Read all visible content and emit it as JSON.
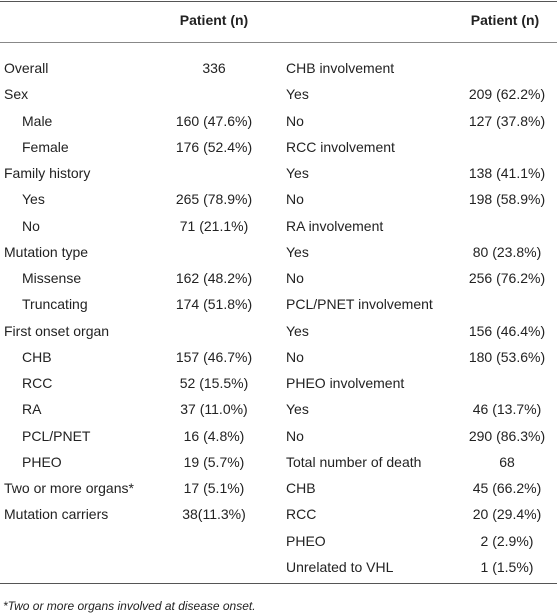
{
  "table": {
    "header": {
      "left": "Patient (n)",
      "right": "Patient (n)"
    },
    "left_rows": [
      {
        "label": "Overall",
        "value": "336"
      },
      {
        "label": "Sex"
      },
      {
        "label": "Male",
        "value": "160 (47.6%)",
        "indent": true
      },
      {
        "label": "Female",
        "value": "176 (52.4%)",
        "indent": true
      },
      {
        "label": "Family history"
      },
      {
        "label": "Yes",
        "value": "265 (78.9%)",
        "indent": true
      },
      {
        "label": "No",
        "value": "71 (21.1%)",
        "indent": true
      },
      {
        "label": "Mutation type"
      },
      {
        "label": "Missense",
        "value": "162 (48.2%)",
        "indent": true
      },
      {
        "label": "Truncating",
        "value": "174 (51.8%)",
        "indent": true
      },
      {
        "label": "First onset organ"
      },
      {
        "label": "CHB",
        "value": "157 (46.7%)",
        "indent": true
      },
      {
        "label": "RCC",
        "value": "52 (15.5%)",
        "indent": true
      },
      {
        "label": "RA",
        "value": "37 (11.0%)",
        "indent": true
      },
      {
        "label": "PCL/PNET",
        "value": "16 (4.8%)",
        "indent": true
      },
      {
        "label": "PHEO",
        "value": "19 (5.7%)",
        "indent": true
      },
      {
        "label": "Two or more organs*",
        "value": "17 (5.1%)"
      },
      {
        "label": "Mutation carriers",
        "value": "38(11.3%)"
      }
    ],
    "right_rows": [
      {
        "label": "CHB involvement"
      },
      {
        "label": "Yes",
        "value": "209 (62.2%)"
      },
      {
        "label": "No",
        "value": "127 (37.8%)"
      },
      {
        "label": "RCC involvement"
      },
      {
        "label": "Yes",
        "value": "138 (41.1%)"
      },
      {
        "label": "No",
        "value": "198 (58.9%)"
      },
      {
        "label": "RA involvement"
      },
      {
        "label": "Yes",
        "value": "80 (23.8%)"
      },
      {
        "label": "No",
        "value": "256 (76.2%)"
      },
      {
        "label": "PCL/PNET involvement"
      },
      {
        "label": "Yes",
        "value": "156 (46.4%)"
      },
      {
        "label": "No",
        "value": "180 (53.6%)"
      },
      {
        "label": "PHEO involvement"
      },
      {
        "label": "Yes",
        "value": "46 (13.7%)"
      },
      {
        "label": "No",
        "value": "290 (86.3%)"
      },
      {
        "label": "Total number of death",
        "value": "68"
      },
      {
        "label": "CHB",
        "value": "45 (66.2%)"
      },
      {
        "label": "RCC",
        "value": "20 (29.4%)"
      },
      {
        "label": "PHEO",
        "value": "2 (2.9%)"
      },
      {
        "label": "Unrelated to VHL",
        "value": "1 (1.5%)"
      }
    ],
    "footnote": "*Two or more organs involved at disease onset."
  }
}
